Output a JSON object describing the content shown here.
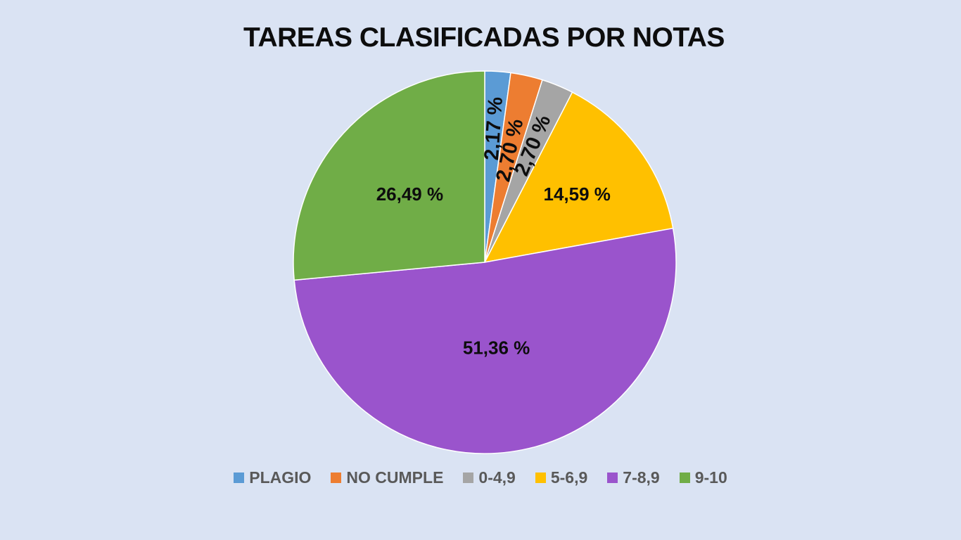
{
  "chart_data": {
    "type": "pie",
    "title": "TAREAS CLASIFICADAS POR NOTAS",
    "legend_position": "bottom",
    "categories": [
      "PLAGIO",
      "NO CUMPLE",
      "0-4,9",
      "5-6,9",
      "7-8,9",
      "9-10"
    ],
    "values": [
      2.17,
      2.7,
      2.7,
      14.59,
      51.36,
      26.49
    ],
    "labels": [
      "2,17 %",
      "2,70 %",
      "2,70 %",
      "14,59 %",
      "51,36 %",
      "26,49 %"
    ],
    "colors": [
      "#5b9bd5",
      "#ed7d31",
      "#a5a5a5",
      "#ffc000",
      "#9a54cc",
      "#70ad47"
    ]
  },
  "background_color": "#dae3f3"
}
